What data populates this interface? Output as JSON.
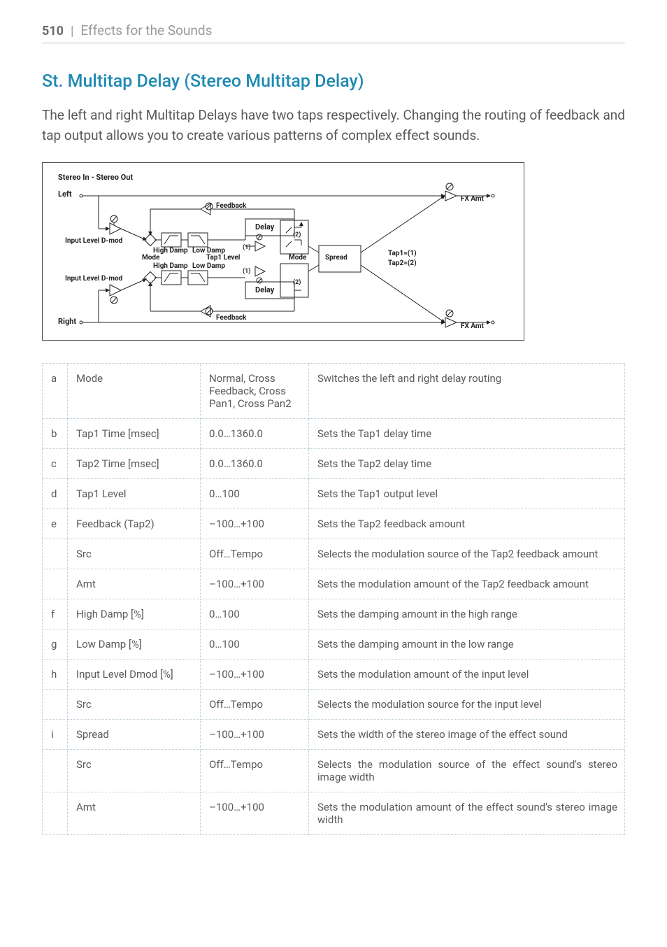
{
  "header": {
    "page_number": "510",
    "separator": "|",
    "section": "Effects for the Sounds"
  },
  "title": "St. Multitap Delay (Stereo Multitap Delay)",
  "intro": "The left and right Multitap Delays have two taps respectively. Changing the routing of feedback and tap output allows you to create various patterns of complex effect sounds.",
  "diagram": {
    "title": "Stereo In - Stereo Out",
    "left": "Left",
    "right": "Right",
    "input_level": "Input Level D-mod",
    "high_damp": "High Damp",
    "low_damp": "Low Damp",
    "feedback": "Feedback",
    "delay": "Delay",
    "tap1_level": "Tap1 Level",
    "tap1_eq": "Tap1=(1)",
    "tap2_eq": "Tap2=(2)",
    "one": "(1)",
    "two": "(2)",
    "mode": "Mode",
    "spread": "Spread",
    "fx_amt": "FX Amt"
  },
  "params": [
    {
      "idx": "a",
      "name": "Mode",
      "range": "Normal, Cross Feedback, Cross Pan1, Cross Pan2",
      "desc": "Switches the left and right delay routing"
    },
    {
      "idx": "b",
      "name": "Tap1 Time [msec]",
      "range": "0.0…1360.0",
      "desc": "Sets the Tap1 delay time"
    },
    {
      "idx": "c",
      "name": "Tap2 Time [msec]",
      "range": "0.0…1360.0",
      "desc": "Sets the Tap2 delay time"
    },
    {
      "idx": "d",
      "name": "Tap1 Level",
      "range": "0…100",
      "desc": "Sets the Tap1 output level"
    },
    {
      "idx": "e",
      "name": "Feedback (Tap2)",
      "range": "–100…+100",
      "desc": "Sets the Tap2 feedback amount"
    },
    {
      "idx": "",
      "name": "Src",
      "range": "Off…Tempo",
      "desc": "Selects the modulation source of the Tap2 feedback amount"
    },
    {
      "idx": "",
      "name": "Amt",
      "range": "–100…+100",
      "desc": "Sets the modulation amount of the Tap2 feedback amount"
    },
    {
      "idx": "f",
      "name": "High Damp [%]",
      "range": "0…100",
      "desc": "Sets the damping amount in the high range"
    },
    {
      "idx": "g",
      "name": "Low Damp [%]",
      "range": "0…100",
      "desc": "Sets the damping amount in the low range"
    },
    {
      "idx": "h",
      "name": "Input Level Dmod [%]",
      "range": "–100…+100",
      "desc": "Sets the modulation amount of the input level"
    },
    {
      "idx": "",
      "name": "Src",
      "range": "Off…Tempo",
      "desc": "Selects the modulation source for the input level"
    },
    {
      "idx": "i",
      "name": "Spread",
      "range": "–100…+100",
      "desc": "Sets the width of the stereo image of the effect sound"
    },
    {
      "idx": "",
      "name": "Src",
      "range": "Off…Tempo",
      "desc": "Selects the modulation source of the effect sound's stereo image width"
    },
    {
      "idx": "",
      "name": "Amt",
      "range": "–100…+100",
      "desc": "Sets the modulation amount of the effect sound's stereo image width"
    }
  ]
}
